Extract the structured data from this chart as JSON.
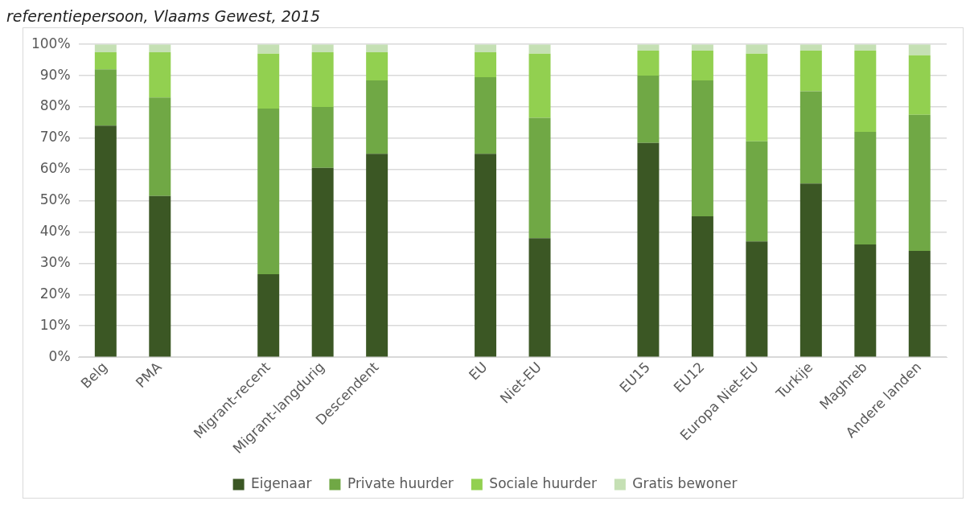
{
  "chart_data": {
    "type": "bar",
    "title": "referentiepersoon, Vlaams Gewest, 2015",
    "stacked": true,
    "categories": [
      "Belg",
      "PMA",
      null,
      "Migrant-recent",
      "Migrant-langdurig",
      "Descendent",
      null,
      "EU",
      "Niet-EU",
      null,
      "EU15",
      "EU12",
      "Europa Niet-EU",
      "Turkije",
      "Maghreb",
      "Andere landen"
    ],
    "series": [
      {
        "name": "Eigenaar",
        "color": "#3b5724",
        "values": [
          74,
          51.5,
          null,
          26.5,
          60.5,
          65,
          null,
          65,
          38,
          null,
          68.5,
          45,
          37,
          55.5,
          36,
          34
        ]
      },
      {
        "name": "Private huurder",
        "color": "#70a845",
        "values": [
          18,
          31.5,
          null,
          53,
          19.5,
          23.5,
          null,
          24.5,
          38.5,
          null,
          21.5,
          43.5,
          32,
          29.5,
          36,
          43.5
        ]
      },
      {
        "name": "Sociale huurder",
        "color": "#92d050",
        "values": [
          5.5,
          14.5,
          null,
          17.5,
          17.5,
          9,
          null,
          8,
          20.5,
          null,
          8,
          9.5,
          28,
          13,
          26,
          19
        ]
      },
      {
        "name": "Gratis bewoner",
        "color": "#c5e0b4",
        "values": [
          2.5,
          2.5,
          null,
          3,
          2.5,
          2.5,
          null,
          2.5,
          3,
          null,
          2,
          2,
          3,
          2,
          2,
          3.5
        ]
      }
    ],
    "ylim": [
      0,
      100
    ],
    "yticks": [
      {
        "value": 0,
        "label": "0%"
      },
      {
        "value": 10,
        "label": "10%"
      },
      {
        "value": 20,
        "label": "20%"
      },
      {
        "value": 30,
        "label": "30%"
      },
      {
        "value": 40,
        "label": "40%"
      },
      {
        "value": 50,
        "label": "50%"
      },
      {
        "value": 60,
        "label": "60%"
      },
      {
        "value": 70,
        "label": "70%"
      },
      {
        "value": 80,
        "label": "80%"
      },
      {
        "value": 90,
        "label": "90%"
      },
      {
        "value": 100,
        "label": "100%"
      }
    ],
    "grid": "y",
    "legend": "bottom"
  }
}
